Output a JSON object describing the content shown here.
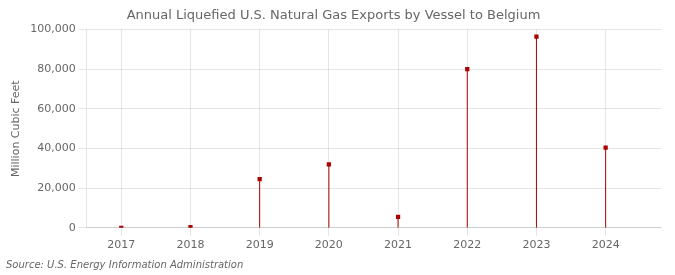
{
  "chart_data": {
    "type": "stem",
    "title": "Annual Liquefied U.S. Natural Gas Exports by Vessel to Belgium",
    "ylabel": "Million Cubic Feet",
    "annotations": [
      "Source: U.S. Energy Information Administration"
    ],
    "x": [
      2017,
      2018,
      2019,
      2020,
      2021,
      2022,
      2023,
      2024
    ],
    "values": [
      0,
      350,
      24500,
      32000,
      5500,
      80000,
      96500,
      40500
    ],
    "color": "#aa0000",
    "marker": "square",
    "xlim": [
      2016.5,
      2024.8
    ],
    "xticks": [
      2017,
      2018,
      2019,
      2020,
      2021,
      2022,
      2023,
      2024
    ],
    "ylim": [
      0,
      100000
    ],
    "yticks": [
      0,
      {
        "value": 20000,
        "label": "20,000"
      },
      {
        "value": 40000,
        "label": "40,000"
      },
      {
        "value": 60000,
        "label": "60,000"
      },
      {
        "value": 80000,
        "label": "80,000"
      },
      {
        "value": 100000,
        "label": "100,000"
      }
    ],
    "grid": true
  }
}
